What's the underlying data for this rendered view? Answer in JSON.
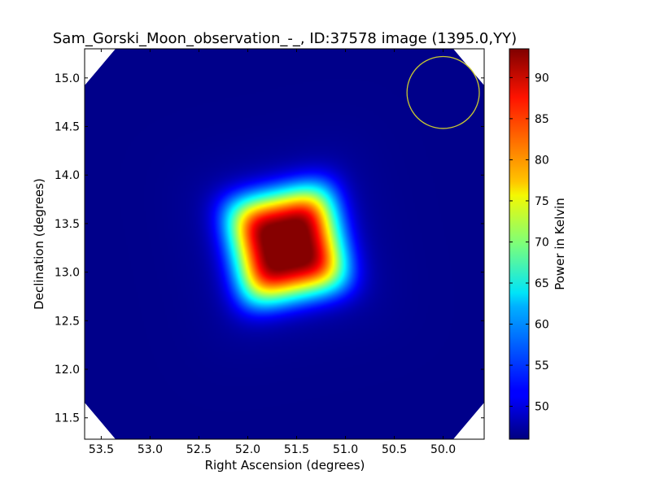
{
  "chart_data": {
    "type": "heatmap",
    "title": "Sam_Gorski_Moon_observation_-_, ID:37578 image (1395.0,YY)",
    "xlabel": "Right Ascension (degrees)",
    "ylabel": "Declination (degrees)",
    "colorbar_label": "Power in Kelvin",
    "colormap": "jet",
    "xlim": [
      53.67,
      49.58
    ],
    "ylim": [
      11.28,
      15.3
    ],
    "clim": [
      46.0,
      93.5
    ],
    "x_ticks": [
      53.5,
      53.0,
      52.5,
      52.0,
      51.5,
      51.0,
      50.5,
      50.0
    ],
    "x_tick_labels": [
      "53.5",
      "53.0",
      "52.5",
      "52.0",
      "51.5",
      "51.0",
      "50.5",
      "50.0"
    ],
    "y_ticks": [
      11.5,
      12.0,
      12.5,
      13.0,
      13.5,
      14.0,
      14.5,
      15.0
    ],
    "y_tick_labels": [
      "11.5",
      "12.0",
      "12.5",
      "13.0",
      "13.5",
      "14.0",
      "14.5",
      "15.0"
    ],
    "colorbar_ticks": [
      50,
      55,
      60,
      65,
      70,
      75,
      80,
      85,
      90
    ],
    "colorbar_tick_labels": [
      "50",
      "55",
      "60",
      "65",
      "70",
      "75",
      "80",
      "85",
      "90"
    ],
    "background_value": 46.5,
    "source_peak": {
      "ra": 51.6,
      "dec": 13.28,
      "value": 93.2
    },
    "source_half_width_deg": 0.55,
    "source_rotation_deg": 12,
    "beam_circle": {
      "ra": 50.0,
      "dec": 14.85,
      "radius_deg": 0.37,
      "color": "#c8c832"
    },
    "colors": {
      "blank_corner": "#ffffff",
      "axes": "#000000"
    }
  }
}
